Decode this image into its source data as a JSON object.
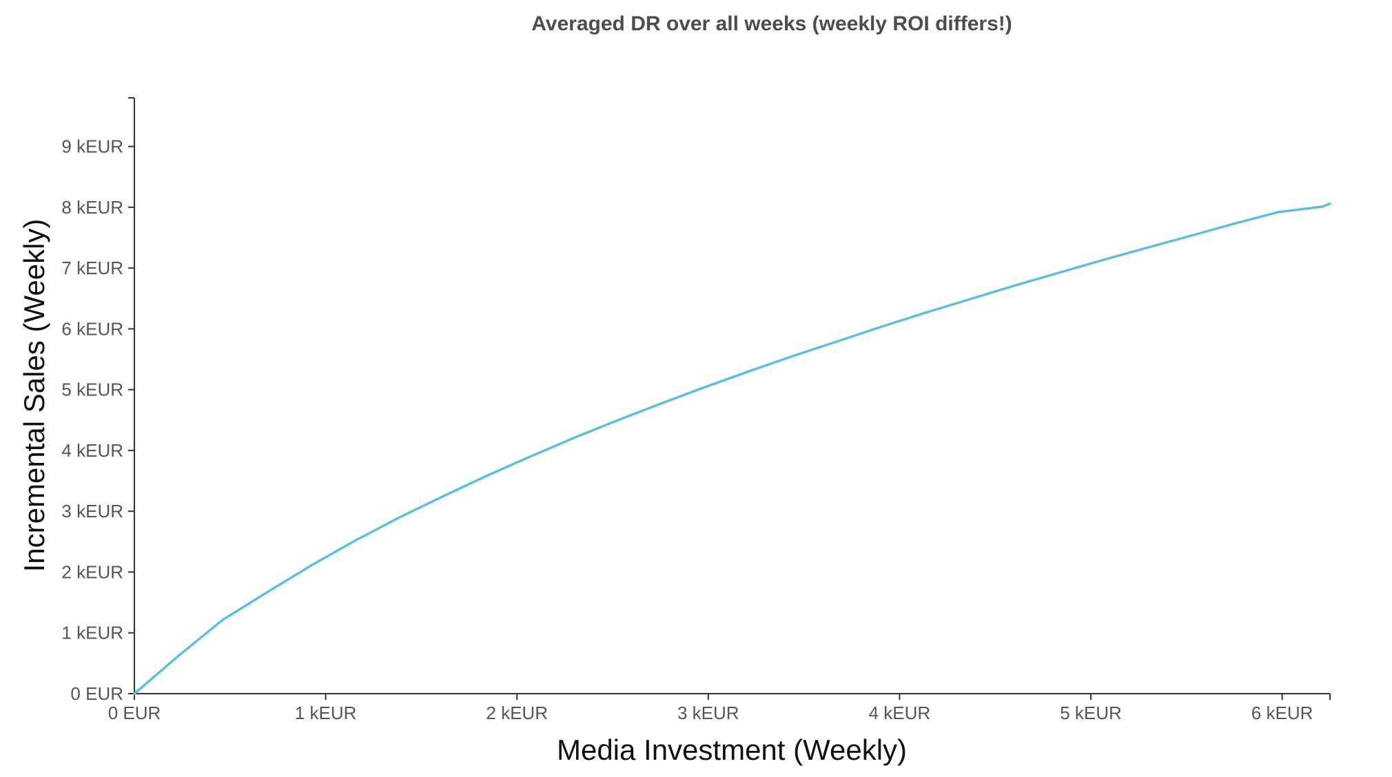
{
  "title": "Averaged DR over all weeks (weekly ROI differs!)",
  "colors": {
    "line": "#5bc0de",
    "axis": "#333333",
    "text": "#555555"
  },
  "chart_data": {
    "type": "line",
    "title": "Averaged DR over all weeks (weekly ROI differs!)",
    "xlabel": "Media Investment (Weekly)",
    "ylabel": "Incremental Sales (Weekly)",
    "xlim": [
      0,
      6250
    ],
    "ylim": [
      0,
      9800
    ],
    "x_ticks": [
      {
        "value": 0,
        "label": "0 EUR"
      },
      {
        "value": 1000,
        "label": "1 kEUR"
      },
      {
        "value": 2000,
        "label": "2 kEUR"
      },
      {
        "value": 3000,
        "label": "3 kEUR"
      },
      {
        "value": 4000,
        "label": "4 kEUR"
      },
      {
        "value": 5000,
        "label": "5 kEUR"
      },
      {
        "value": 6000,
        "label": "6 kEUR"
      }
    ],
    "y_ticks": [
      {
        "value": 0,
        "label": "0 EUR"
      },
      {
        "value": 1000,
        "label": "1 kEUR"
      },
      {
        "value": 2000,
        "label": "2 kEUR"
      },
      {
        "value": 3000,
        "label": "3 kEUR"
      },
      {
        "value": 4000,
        "label": "4 kEUR"
      },
      {
        "value": 5000,
        "label": "5 kEUR"
      },
      {
        "value": 6000,
        "label": "6 kEUR"
      },
      {
        "value": 7000,
        "label": "7 kEUR"
      },
      {
        "value": 8000,
        "label": "8 kEUR"
      },
      {
        "value": 9000,
        "label": "9 kEUR"
      }
    ],
    "grid": false,
    "series": [
      {
        "x": [
          0,
          230,
          460,
          690,
          920,
          1150,
          1380,
          1610,
          1840,
          2070,
          2300,
          2530,
          2760,
          2990,
          3220,
          3450,
          3680,
          3910,
          4140,
          4370,
          4600,
          4830,
          5060,
          5290,
          5520,
          5750,
          5980,
          6210,
          6250
        ],
        "y": [
          0,
          620,
          1210,
          1660,
          2100,
          2510,
          2890,
          3240,
          3580,
          3900,
          4210,
          4500,
          4780,
          5050,
          5310,
          5560,
          5800,
          6040,
          6270,
          6490,
          6710,
          6920,
          7130,
          7330,
          7530,
          7730,
          7920,
          8010,
          8060
        ]
      }
    ]
  }
}
